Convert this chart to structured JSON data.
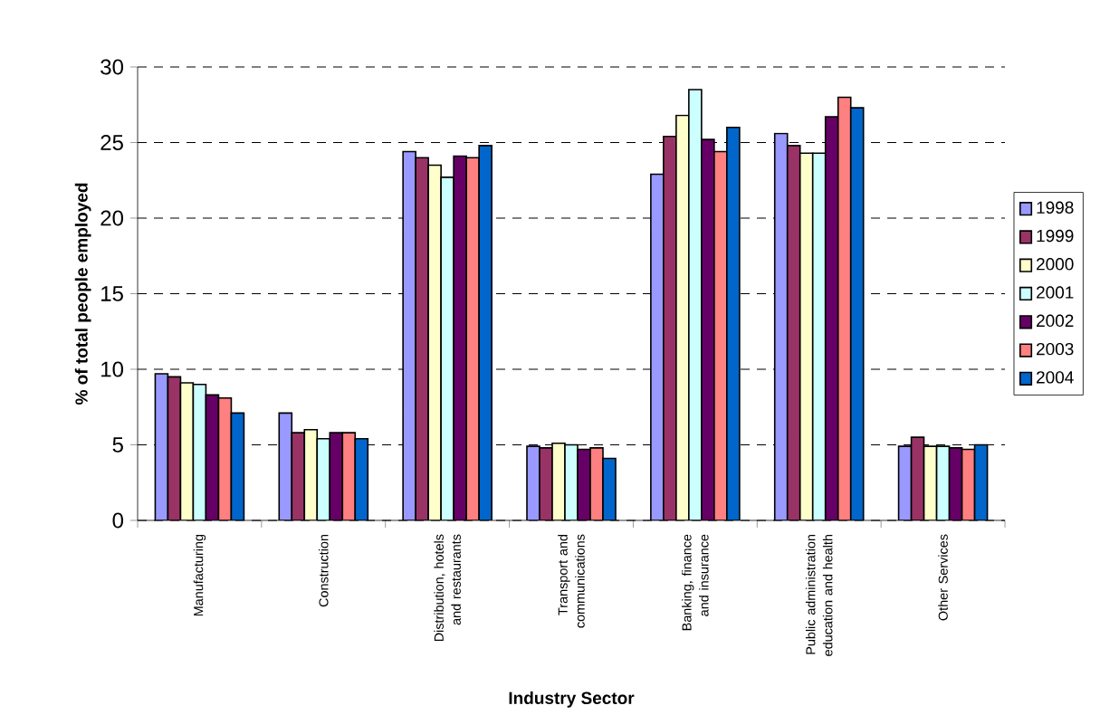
{
  "chart_data": {
    "type": "bar",
    "xlabel": "Industry Sector",
    "ylabel": "% of total people employed",
    "categories": [
      "Manufacturing",
      "Construction",
      "Distribution, hotels and restaurants",
      "Transport and communications",
      "Banking, finance and insurance",
      "Public administration education and health",
      "Other Services"
    ],
    "series": [
      {
        "name": "1998",
        "color": "#9999ff",
        "values": [
          9.7,
          7.1,
          24.4,
          4.9,
          22.9,
          25.6,
          4.9
        ]
      },
      {
        "name": "1999",
        "color": "#993366",
        "values": [
          9.5,
          5.8,
          24.0,
          4.8,
          25.4,
          24.8,
          5.5
        ]
      },
      {
        "name": "2000",
        "color": "#ffffcc",
        "values": [
          9.1,
          6.0,
          23.5,
          5.1,
          26.8,
          24.3,
          4.9
        ]
      },
      {
        "name": "2001",
        "color": "#ccffff",
        "values": [
          9.0,
          5.4,
          22.7,
          5.0,
          28.5,
          24.3,
          4.9
        ]
      },
      {
        "name": "2002",
        "color": "#660066",
        "values": [
          8.3,
          5.8,
          24.1,
          4.7,
          25.2,
          26.7,
          4.8
        ]
      },
      {
        "name": "2003",
        "color": "#ff8080",
        "values": [
          8.1,
          5.8,
          24.0,
          4.8,
          24.4,
          28.0,
          4.7
        ]
      },
      {
        "name": "2004",
        "color": "#0066cc",
        "values": [
          7.1,
          5.4,
          24.8,
          4.1,
          26.0,
          27.3,
          5.0
        ]
      }
    ],
    "ylim": [
      0,
      30
    ],
    "yticks": [
      0,
      5,
      10,
      15,
      20,
      25,
      30
    ],
    "grid": "y",
    "legend": "right"
  }
}
